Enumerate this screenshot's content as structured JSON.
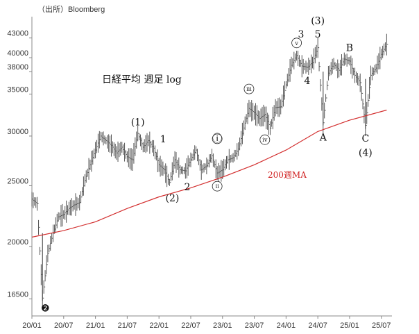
{
  "source": "（出所）Bloomberg",
  "colors": {
    "price": "#555555",
    "ma": "#d32f2f",
    "axis": "#888888"
  },
  "chart_data": {
    "type": "line",
    "title": "日経平均 週足 log",
    "scale": "log",
    "ylim": [
      15500,
      46500
    ],
    "xlim": [
      "2020-01",
      "2025-09"
    ],
    "y_ticks": [
      16500,
      20000,
      25000,
      30000,
      35000,
      38000,
      40000,
      43000
    ],
    "x_ticks": [
      {
        "label": "20/01",
        "t": "2020-01"
      },
      {
        "label": "20/07",
        "t": "2020-07"
      },
      {
        "label": "21/01",
        "t": "2021-01"
      },
      {
        "label": "21/07",
        "t": "2021-07"
      },
      {
        "label": "22/01",
        "t": "2022-01"
      },
      {
        "label": "22/07",
        "t": "2022-07"
      },
      {
        "label": "23/01",
        "t": "2023-01"
      },
      {
        "label": "23/07",
        "t": "2023-07"
      },
      {
        "label": "24/01",
        "t": "2024-01"
      },
      {
        "label": "24/07",
        "t": "2024-07"
      },
      {
        "label": "25/01",
        "t": "2025-01"
      },
      {
        "label": "25/07",
        "t": "2025-07"
      }
    ],
    "series": [
      {
        "name": "",
        "style": "price",
        "points": [
          [
            "2020-01",
            23800
          ],
          [
            "2020-02",
            23400
          ],
          [
            "2020-03",
            16550
          ],
          [
            "2020-04",
            19500
          ],
          [
            "2020-05",
            21000
          ],
          [
            "2020-06",
            22300
          ],
          [
            "2020-07",
            22500
          ],
          [
            "2020-08",
            23000
          ],
          [
            "2020-09",
            23300
          ],
          [
            "2020-10",
            23500
          ],
          [
            "2020-11",
            25500
          ],
          [
            "2020-12",
            27000
          ],
          [
            "2021-01",
            28500
          ],
          [
            "2021-02",
            30000
          ],
          [
            "2021-03",
            29500
          ],
          [
            "2021-04",
            29000
          ],
          [
            "2021-05",
            28200
          ],
          [
            "2021-06",
            28800
          ],
          [
            "2021-07",
            27800
          ],
          [
            "2021-08",
            27500
          ],
          [
            "2021-09",
            30300
          ],
          [
            "2021-10",
            28800
          ],
          [
            "2021-11",
            29500
          ],
          [
            "2021-12",
            28700
          ],
          [
            "2022-01",
            27000
          ],
          [
            "2022-02",
            26500
          ],
          [
            "2022-03",
            25300
          ],
          [
            "2022-04",
            27500
          ],
          [
            "2022-05",
            26500
          ],
          [
            "2022-06",
            26400
          ],
          [
            "2022-07",
            27500
          ],
          [
            "2022-08",
            28500
          ],
          [
            "2022-09",
            26500
          ],
          [
            "2022-10",
            26900
          ],
          [
            "2022-11",
            27900
          ],
          [
            "2022-12",
            26200
          ],
          [
            "2023-01",
            26500
          ],
          [
            "2023-02",
            27500
          ],
          [
            "2023-03",
            27700
          ],
          [
            "2023-04",
            28600
          ],
          [
            "2023-05",
            30900
          ],
          [
            "2023-06",
            33200
          ],
          [
            "2023-07",
            32700
          ],
          [
            "2023-08",
            32000
          ],
          [
            "2023-09",
            32500
          ],
          [
            "2023-10",
            30900
          ],
          [
            "2023-11",
            33300
          ],
          [
            "2023-12",
            33400
          ],
          [
            "2024-01",
            36200
          ],
          [
            "2024-02",
            38900
          ],
          [
            "2024-03",
            40300
          ],
          [
            "2024-04",
            38800
          ],
          [
            "2024-05",
            38600
          ],
          [
            "2024-06",
            39300
          ],
          [
            "2024-07",
            41500
          ],
          [
            "2024-08",
            31500
          ],
          [
            "2024-09",
            37800
          ],
          [
            "2024-10",
            39100
          ],
          [
            "2024-11",
            38200
          ],
          [
            "2024-12",
            39800
          ],
          [
            "2025-01",
            39500
          ],
          [
            "2025-02",
            37500
          ],
          [
            "2025-03",
            36500
          ],
          [
            "2025-04",
            31200
          ],
          [
            "2025-05",
            37500
          ],
          [
            "2025-06",
            38500
          ],
          [
            "2025-07",
            40500
          ],
          [
            "2025-08",
            42000
          ]
        ]
      },
      {
        "name": "200週MA",
        "style": "ma",
        "points": [
          [
            "2020-01",
            20700
          ],
          [
            "2020-07",
            21200
          ],
          [
            "2021-01",
            21900
          ],
          [
            "2021-07",
            23000
          ],
          [
            "2022-01",
            24000
          ],
          [
            "2022-07",
            24800
          ],
          [
            "2023-01",
            25800
          ],
          [
            "2023-07",
            27000
          ],
          [
            "2024-01",
            28500
          ],
          [
            "2024-07",
            30500
          ],
          [
            "2025-01",
            31800
          ],
          [
            "2025-08",
            33000
          ]
        ]
      }
    ],
    "annotations": [
      {
        "text": "❷",
        "t": "2020-03",
        "y": 15750,
        "dx": 4,
        "size": 22
      },
      {
        "text": "(1)",
        "t": "2021-09",
        "y": 31200
      },
      {
        "text": "1",
        "t": "2022-01",
        "y": 29300,
        "dx": 6
      },
      {
        "text": "2",
        "t": "2022-07",
        "y": 24600,
        "dx": -5
      },
      {
        "text": "(2)",
        "t": "2022-03",
        "y": 23600,
        "dx": 4
      },
      {
        "text": "ⓘ",
        "t": "2022-12",
        "y": 29400
      },
      {
        "text": "ⓘⓘ",
        "t": "2022-12",
        "y": 24600,
        "hidden": true
      },
      {
        "text": "ⓘⓘⓘ",
        "t": "2023-06",
        "y": 35400,
        "hidden": true
      },
      {
        "text": "ⓘⓥ",
        "t": "2023-09",
        "y": 29200,
        "hidden": true
      },
      {
        "text": "ⓥ",
        "t": "2024-03",
        "y": 41700,
        "hidden": true
      },
      {
        "text": "3",
        "t": "2024-02",
        "y": 43100,
        "dx": 14
      },
      {
        "text": "(3)",
        "t": "2024-07",
        "y": 45300,
        "dx": 0
      },
      {
        "text": "5",
        "t": "2024-07",
        "y": 43100,
        "dx": 0
      },
      {
        "text": "4",
        "t": "2024-05",
        "y": 36300
      },
      {
        "text": "A",
        "t": "2024-08",
        "y": 29500
      },
      {
        "text": "B",
        "t": "2025-01",
        "y": 41000
      },
      {
        "text": "C",
        "t": "2025-04",
        "y": 29400
      },
      {
        "text": "(4)",
        "t": "2025-04",
        "y": 27900
      }
    ],
    "roman_marks": [
      {
        "text": "i",
        "t": "2022-12",
        "y": 29400
      },
      {
        "text": "ii",
        "t": "2022-12",
        "y": 24700
      },
      {
        "text": "iii",
        "t": "2023-06",
        "y": 35300
      },
      {
        "text": "iv",
        "t": "2023-09",
        "y": 29300
      },
      {
        "text": "v",
        "t": "2024-03",
        "y": 41800
      }
    ],
    "labels": {
      "ma": "200週MA"
    }
  }
}
